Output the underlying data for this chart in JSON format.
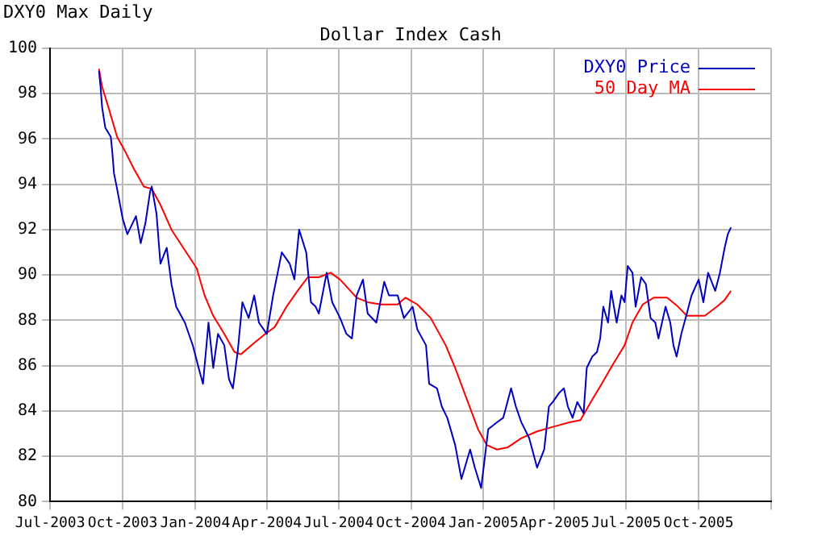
{
  "chart_data": {
    "type": "line",
    "title": "Dollar Index Cash",
    "annotations": [
      "DXY0 Max Daily"
    ],
    "xlim": [
      "2003-07-01",
      "2006-01-01"
    ],
    "xticks": [
      {
        "value": "2003-07-01",
        "label": "Jul-2003"
      },
      {
        "value": "2003-10-01",
        "label": "Oct-2003"
      },
      {
        "value": "2004-01-01",
        "label": "Jan-2004"
      },
      {
        "value": "2004-04-01",
        "label": "Apr-2004"
      },
      {
        "value": "2004-07-01",
        "label": "Jul-2004"
      },
      {
        "value": "2004-10-01",
        "label": "Oct-2004"
      },
      {
        "value": "2005-01-01",
        "label": "Jan-2005"
      },
      {
        "value": "2005-04-01",
        "label": "Apr-2005"
      },
      {
        "value": "2005-07-01",
        "label": "Jul-2005"
      },
      {
        "value": "2005-10-01",
        "label": "Oct-2005"
      },
      {
        "value": "2006-01-01",
        "label": null
      }
    ],
    "ylim": [
      80,
      100
    ],
    "yticks": [
      80,
      82,
      84,
      86,
      88,
      90,
      92,
      94,
      96,
      98,
      100
    ],
    "grid": true,
    "legend": "top right",
    "marker": "none",
    "line_style": "solid",
    "series": [
      {
        "name": "DXY0 Price",
        "color": "#0000c0",
        "x": [
          "2003-09-01",
          "2003-09-03",
          "2003-09-05",
          "2003-09-09",
          "2003-09-16",
          "2003-09-18",
          "2003-09-20",
          "2003-09-24",
          "2003-10-01",
          "2003-10-07",
          "2003-10-18",
          "2003-10-24",
          "2003-10-30",
          "2003-11-05",
          "2003-11-07",
          "2003-11-13",
          "2003-11-18",
          "2003-11-26",
          "2003-12-02",
          "2003-12-08",
          "2003-12-19",
          "2003-12-29",
          "2004-01-07",
          "2004-01-11",
          "2004-01-18",
          "2004-01-24",
          "2004-01-30",
          "2004-02-07",
          "2004-02-13",
          "2004-02-18",
          "2004-02-24",
          "2004-03-01",
          "2004-03-09",
          "2004-03-16",
          "2004-03-22",
          "2004-04-01",
          "2004-04-09",
          "2004-04-20",
          "2004-04-30",
          "2004-05-06",
          "2004-05-12",
          "2004-05-21",
          "2004-05-27",
          "2004-06-02",
          "2004-06-06",
          "2004-06-16",
          "2004-06-23",
          "2004-07-03",
          "2004-07-11",
          "2004-07-18",
          "2004-07-24",
          "2004-08-01",
          "2004-08-07",
          "2004-08-18",
          "2004-08-28",
          "2004-09-03",
          "2004-09-14",
          "2004-09-22",
          "2004-10-03",
          "2004-10-09",
          "2004-10-20",
          "2004-10-24",
          "2004-11-03",
          "2004-11-09",
          "2004-11-16",
          "2004-11-26",
          "2004-12-04",
          "2004-12-15",
          "2004-12-21",
          "2004-12-29",
          "2005-01-07",
          "2005-01-18",
          "2005-01-26",
          "2005-02-05",
          "2005-02-11",
          "2005-02-18",
          "2005-02-28",
          "2005-03-10",
          "2005-03-19",
          "2005-03-25",
          "2005-03-30",
          "2005-04-07",
          "2005-04-13",
          "2005-04-18",
          "2005-04-24",
          "2005-04-30",
          "2005-05-08",
          "2005-05-12",
          "2005-05-19",
          "2005-05-25",
          "2005-05-29",
          "2005-06-02",
          "2005-06-08",
          "2005-06-12",
          "2005-06-19",
          "2005-06-25",
          "2005-06-29",
          "2005-07-03",
          "2005-07-09",
          "2005-07-13",
          "2005-07-20",
          "2005-07-26",
          "2005-08-01",
          "2005-08-07",
          "2005-08-11",
          "2005-08-20",
          "2005-08-26",
          "2005-08-30",
          "2005-09-03",
          "2005-09-09",
          "2005-09-16",
          "2005-09-22",
          "2005-10-01",
          "2005-10-07",
          "2005-10-13",
          "2005-10-22",
          "2005-10-28",
          "2005-11-03",
          "2005-11-07",
          "2005-11-11"
        ],
        "values": [
          99.0,
          98.3,
          97.4,
          96.5,
          96.1,
          95.4,
          94.5,
          93.8,
          92.5,
          91.8,
          92.6,
          91.4,
          92.3,
          93.7,
          93.9,
          92.7,
          90.5,
          91.2,
          89.6,
          88.6,
          87.9,
          86.9,
          85.7,
          85.2,
          87.9,
          85.9,
          87.4,
          86.9,
          85.4,
          85.0,
          86.6,
          88.8,
          88.1,
          89.1,
          87.9,
          87.4,
          89.1,
          91.0,
          90.5,
          89.8,
          92.0,
          91.0,
          88.8,
          88.6,
          88.3,
          90.1,
          88.8,
          88.1,
          87.4,
          87.2,
          89.1,
          89.8,
          88.3,
          87.9,
          89.7,
          89.1,
          89.1,
          88.1,
          88.6,
          87.6,
          86.9,
          85.2,
          85.0,
          84.2,
          83.7,
          82.5,
          81.0,
          82.3,
          81.5,
          80.6,
          83.2,
          83.5,
          83.7,
          85.0,
          84.2,
          83.5,
          82.8,
          81.5,
          82.3,
          84.2,
          84.4,
          84.8,
          85.0,
          84.2,
          83.7,
          84.4,
          83.9,
          85.9,
          86.4,
          86.6,
          87.2,
          88.6,
          87.9,
          89.3,
          87.9,
          89.1,
          88.8,
          90.4,
          90.1,
          88.6,
          89.9,
          89.6,
          88.1,
          87.9,
          87.2,
          88.6,
          87.9,
          86.9,
          86.4,
          87.4,
          88.3,
          89.1,
          89.8,
          88.8,
          90.1,
          89.3,
          90.1,
          91.2,
          91.8,
          92.1
        ]
      },
      {
        "name": "50 Day MA",
        "color": "#ff0000",
        "x": [
          "2003-09-01",
          "2003-09-05",
          "2003-09-13",
          "2003-09-24",
          "2003-10-05",
          "2003-10-15",
          "2003-10-28",
          "2003-11-07",
          "2003-11-18",
          "2003-12-02",
          "2003-12-17",
          "2004-01-03",
          "2004-01-13",
          "2004-01-24",
          "2004-02-07",
          "2004-02-20",
          "2004-02-28",
          "2004-03-16",
          "2004-03-30",
          "2004-04-11",
          "2004-04-26",
          "2004-05-10",
          "2004-05-23",
          "2004-06-06",
          "2004-06-21",
          "2004-07-03",
          "2004-07-24",
          "2004-08-07",
          "2004-08-24",
          "2004-09-14",
          "2004-09-24",
          "2004-10-09",
          "2004-10-26",
          "2004-11-14",
          "2004-11-26",
          "2004-12-11",
          "2004-12-25",
          "2005-01-05",
          "2005-01-18",
          "2005-02-01",
          "2005-02-18",
          "2005-03-10",
          "2005-03-30",
          "2005-04-20",
          "2005-05-04",
          "2005-05-19",
          "2005-05-31",
          "2005-06-15",
          "2005-06-29",
          "2005-07-09",
          "2005-07-22",
          "2005-08-05",
          "2005-08-22",
          "2005-09-05",
          "2005-09-16",
          "2005-09-26",
          "2005-10-09",
          "2005-10-24",
          "2005-11-03",
          "2005-11-11"
        ],
        "values": [
          99.1,
          98.3,
          97.4,
          96.1,
          95.4,
          94.7,
          93.9,
          93.8,
          93.1,
          92.0,
          91.2,
          90.3,
          89.1,
          88.2,
          87.4,
          86.6,
          86.5,
          87.0,
          87.4,
          87.7,
          88.6,
          89.3,
          89.9,
          89.9,
          90.1,
          89.8,
          89.0,
          88.8,
          88.7,
          88.7,
          89.0,
          88.7,
          88.1,
          86.9,
          85.9,
          84.5,
          83.2,
          82.5,
          82.3,
          82.4,
          82.8,
          83.1,
          83.3,
          83.5,
          83.6,
          84.5,
          85.2,
          86.1,
          86.9,
          87.9,
          88.7,
          89.0,
          89.0,
          88.6,
          88.2,
          88.2,
          88.2,
          88.6,
          88.9,
          89.3
        ]
      }
    ]
  }
}
